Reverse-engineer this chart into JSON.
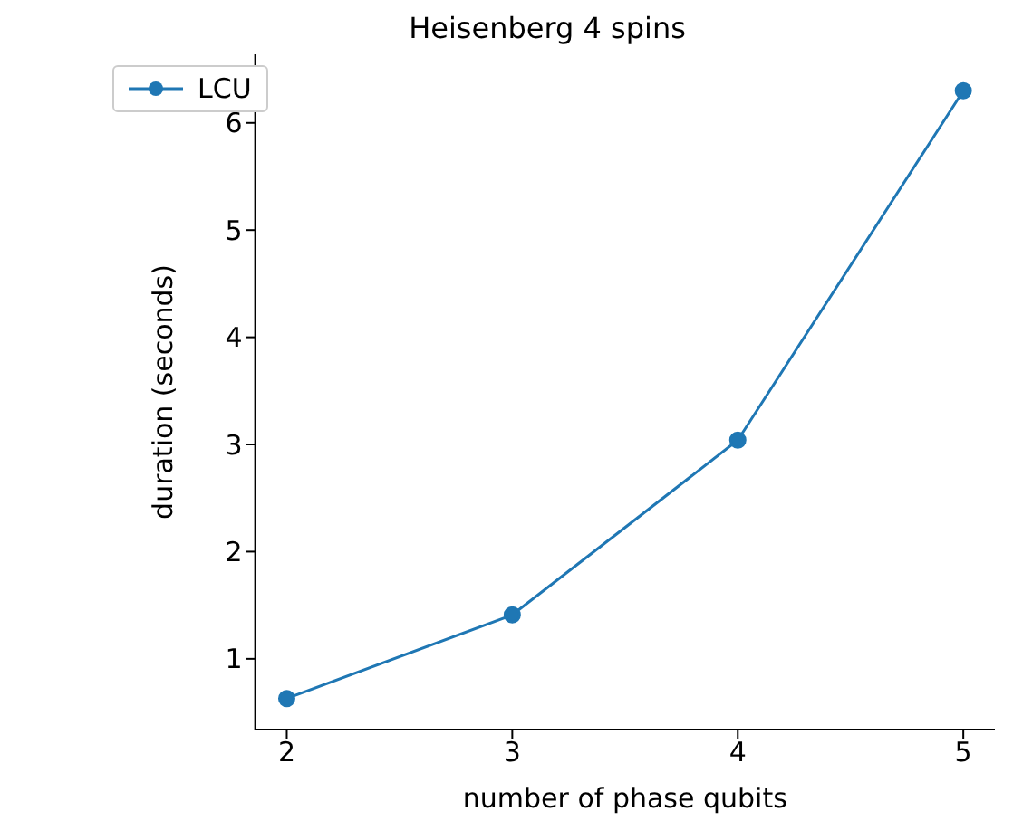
{
  "chart_data": {
    "type": "line",
    "title": "Heisenberg 4 spins",
    "xlabel": "number of phase qubits",
    "ylabel": "duration (seconds)",
    "x": [
      2,
      3,
      4,
      5
    ],
    "series": [
      {
        "name": "LCU",
        "color": "#1f77b4",
        "values": [
          0.63,
          1.41,
          3.04,
          6.3
        ]
      }
    ],
    "xlim": [
      1.86,
      5.14
    ],
    "xticks": [
      2,
      3,
      4,
      5
    ],
    "ylim": [
      0.34,
      6.64
    ],
    "yticks": [
      1,
      2,
      3,
      4,
      5,
      6
    ],
    "legend": "top left",
    "marker": "circle",
    "line_style": "solid",
    "grid": false
  }
}
